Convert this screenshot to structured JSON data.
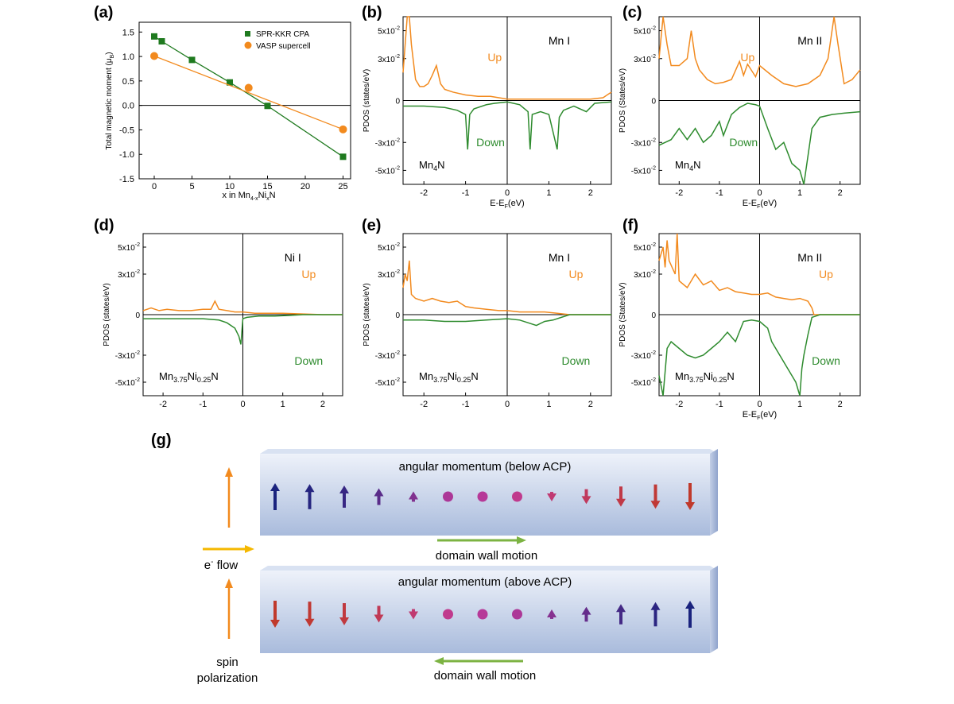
{
  "colors": {
    "orange": "#f28a1e",
    "green": "#2e8b2e",
    "green_marker": "#1f7a1f",
    "axis": "#000000",
    "up_arrow": "#1a237e",
    "down_arrow": "#c0392b",
    "mid_arrow": "#c03a9a",
    "slab_top": "#e9eef8",
    "slab_bottom": "#aebfdf",
    "flow": "#f5b800"
  },
  "panel_labels": [
    "(a)",
    "(b)",
    "(c)",
    "(d)",
    "(e)",
    "(f)",
    "(g)"
  ],
  "chart_data": [
    {
      "id": "a",
      "type": "line",
      "title": "",
      "xlabel": "x in Mn",
      "xlabel_sub1": "4-x",
      "xlabel_mid": "Ni",
      "xlabel_sub2": "x",
      "xlabel_end": "N",
      "ylabel": "Total magnetic moment (μ",
      "ylabel_sub": "B",
      "ylabel_end": ")",
      "xlim": [
        -2,
        26
      ],
      "ylim": [
        -1.5,
        1.7
      ],
      "xticks": [
        0,
        5,
        10,
        15,
        20,
        25
      ],
      "yticks": [
        -1.5,
        -1.0,
        -0.5,
        0.0,
        0.5,
        1.0,
        1.5
      ],
      "ytick_labels": [
        "-1.5",
        "-1.0",
        "-0.5",
        "0.0",
        "0.5",
        "1.0",
        "1.5"
      ],
      "series": [
        {
          "name": "SPR-KKR CPA",
          "marker": "square",
          "points": [
            [
              0,
              1.41
            ],
            [
              1,
              1.31
            ],
            [
              5,
              0.93
            ],
            [
              10,
              0.47
            ],
            [
              15,
              -0.01
            ],
            [
              25,
              -1.05
            ]
          ]
        },
        {
          "name": "VASP supercell",
          "marker": "circle",
          "points": [
            [
              0,
              1.01
            ],
            [
              12.5,
              0.36
            ],
            [
              25,
              -0.49
            ]
          ]
        }
      ]
    },
    {
      "id": "b",
      "type": "line",
      "xlabel": "E-E",
      "xlabel_sub": "F",
      "xlabel_end": "(eV)",
      "ylabel": "PDOS (states/eV)",
      "xlim": [
        -2.5,
        2.5
      ],
      "ylim": [
        -0.06,
        0.06
      ],
      "xticks": [
        -2,
        -1,
        0,
        1,
        2
      ],
      "ytick_values": [
        0.05,
        0.03,
        0,
        -0.03,
        -0.05
      ],
      "ytick_labels": [
        {
          "m": "5x10",
          "e": "-2"
        },
        {
          "m": "3x10",
          "e": "-2"
        },
        {
          "m": "0",
          "e": ""
        },
        {
          "m": "-3x10",
          "e": "-2"
        },
        {
          "m": "-5x10",
          "e": "-2"
        }
      ],
      "site": "Mn I",
      "up": "Up",
      "down": "Down",
      "compound": {
        "a": "Mn",
        "b": "4",
        "c": "N",
        "d": "",
        "e": ""
      },
      "series": [
        {
          "name": "Up",
          "x": [
            -2.5,
            -2.4,
            -2.35,
            -2.3,
            -2.2,
            -2.1,
            -2.0,
            -1.9,
            -1.8,
            -1.7,
            -1.6,
            -1.5,
            -1.3,
            -1.0,
            -0.7,
            -0.4,
            -0.2,
            0.0,
            0.5,
            1.0,
            1.5,
            2.0,
            2.3,
            2.5
          ],
          "y": [
            0.02,
            0.07,
            0.07,
            0.04,
            0.015,
            0.01,
            0.01,
            0.012,
            0.018,
            0.025,
            0.012,
            0.008,
            0.006,
            0.004,
            0.003,
            0.003,
            0.002,
            0.001,
            0.001,
            0.001,
            0.001,
            0.001,
            0.002,
            0.006
          ]
        },
        {
          "name": "Down",
          "x": [
            -2.5,
            -2.0,
            -1.5,
            -1.2,
            -1.0,
            -0.95,
            -0.9,
            -0.8,
            -0.5,
            -0.3,
            0.0,
            0.3,
            0.5,
            0.55,
            0.6,
            0.8,
            1.0,
            1.2,
            1.25,
            1.35,
            1.6,
            1.9,
            2.1,
            2.5
          ],
          "y": [
            -0.004,
            -0.004,
            -0.005,
            -0.007,
            -0.01,
            -0.035,
            -0.01,
            -0.006,
            -0.003,
            -0.002,
            -0.001,
            -0.003,
            -0.008,
            -0.035,
            -0.01,
            -0.008,
            -0.01,
            -0.035,
            -0.012,
            -0.007,
            -0.004,
            -0.008,
            -0.002,
            -0.001
          ]
        }
      ]
    },
    {
      "id": "c",
      "type": "line",
      "xlabel": "E-E",
      "xlabel_sub": "F",
      "xlabel_end": "(eV)",
      "ylabel": "PDOS (States/eV)",
      "xlim": [
        -2.5,
        2.5
      ],
      "ylim": [
        -0.06,
        0.06
      ],
      "xticks": [
        -2,
        -1,
        0,
        1,
        2
      ],
      "ytick_values": [
        0.05,
        0.03,
        0,
        -0.03,
        -0.05
      ],
      "ytick_labels": [
        {
          "m": "5x10",
          "e": "-2"
        },
        {
          "m": "3x10",
          "e": "-2"
        },
        {
          "m": "0",
          "e": ""
        },
        {
          "m": "-3x10",
          "e": "-2"
        },
        {
          "m": "-5x10",
          "e": "-2"
        }
      ],
      "site": "Mn II",
      "up": "Up",
      "down": "Down",
      "compound": {
        "a": "Mn",
        "b": "4",
        "c": "N",
        "d": "",
        "e": ""
      },
      "series": [
        {
          "name": "Up",
          "x": [
            -2.5,
            -2.4,
            -2.3,
            -2.2,
            -2.0,
            -1.8,
            -1.7,
            -1.6,
            -1.5,
            -1.3,
            -1.1,
            -0.9,
            -0.7,
            -0.5,
            -0.4,
            -0.3,
            -0.1,
            0.0,
            0.3,
            0.6,
            0.9,
            1.2,
            1.5,
            1.7,
            1.85,
            1.95,
            2.1,
            2.3,
            2.5
          ],
          "y": [
            0.03,
            0.07,
            0.04,
            0.025,
            0.025,
            0.03,
            0.05,
            0.03,
            0.022,
            0.015,
            0.012,
            0.013,
            0.015,
            0.028,
            0.018,
            0.026,
            0.017,
            0.025,
            0.018,
            0.012,
            0.01,
            0.012,
            0.018,
            0.03,
            0.07,
            0.04,
            0.012,
            0.015,
            0.022
          ]
        },
        {
          "name": "Down",
          "x": [
            -2.5,
            -2.2,
            -2.0,
            -1.8,
            -1.6,
            -1.4,
            -1.2,
            -1.0,
            -0.9,
            -0.7,
            -0.5,
            -0.3,
            -0.1,
            0.0,
            0.2,
            0.4,
            0.6,
            0.8,
            1.0,
            1.1,
            1.2,
            1.3,
            1.5,
            1.8,
            2.1,
            2.5
          ],
          "y": [
            -0.032,
            -0.028,
            -0.02,
            -0.028,
            -0.02,
            -0.03,
            -0.025,
            -0.015,
            -0.025,
            -0.01,
            -0.005,
            -0.002,
            -0.003,
            -0.004,
            -0.02,
            -0.035,
            -0.03,
            -0.045,
            -0.05,
            -0.07,
            -0.04,
            -0.02,
            -0.012,
            -0.01,
            -0.009,
            -0.008
          ]
        }
      ]
    },
    {
      "id": "d",
      "type": "line",
      "xlabel": "",
      "xlabel_sub": "",
      "xlabel_end": "",
      "ylabel": "PDOS (states/eV)",
      "xlim": [
        -2.5,
        2.5
      ],
      "ylim": [
        -0.06,
        0.06
      ],
      "xticks": [
        -2,
        -1,
        0,
        1,
        2
      ],
      "ytick_values": [
        0.05,
        0.03,
        0,
        -0.03,
        -0.05
      ],
      "ytick_labels": [
        {
          "m": "5x10",
          "e": "-2"
        },
        {
          "m": "3x10",
          "e": "-2"
        },
        {
          "m": "0",
          "e": ""
        },
        {
          "m": "-3x10",
          "e": "-2"
        },
        {
          "m": "-5x10",
          "e": "-2"
        }
      ],
      "site": "Ni I",
      "up": "Up",
      "down": "Down",
      "compound": {
        "a": "Mn",
        "b": "3.75",
        "c": "Ni",
        "d": "0.25",
        "e": "N"
      },
      "series": [
        {
          "name": "Up",
          "x": [
            -2.5,
            -2.3,
            -2.1,
            -1.9,
            -1.6,
            -1.3,
            -1.0,
            -0.8,
            -0.7,
            -0.6,
            -0.4,
            -0.2,
            0.0,
            0.3,
            0.6,
            1.0,
            1.5,
            2.0,
            2.5
          ],
          "y": [
            0.003,
            0.005,
            0.003,
            0.004,
            0.003,
            0.003,
            0.004,
            0.004,
            0.01,
            0.004,
            0.003,
            0.002,
            0.002,
            0.001,
            0.001,
            0.001,
            0.0005,
            0.0,
            0.0
          ]
        },
        {
          "name": "Down",
          "x": [
            -2.5,
            -2.0,
            -1.5,
            -1.0,
            -0.6,
            -0.4,
            -0.2,
            -0.1,
            -0.05,
            0.0,
            0.1,
            0.4,
            0.8,
            1.2,
            1.5,
            2.0,
            2.5
          ],
          "y": [
            -0.003,
            -0.003,
            -0.003,
            -0.003,
            -0.004,
            -0.006,
            -0.01,
            -0.016,
            -0.022,
            -0.003,
            -0.002,
            -0.001,
            -0.001,
            -0.0005,
            0.0,
            0.0,
            0.0
          ]
        }
      ]
    },
    {
      "id": "e",
      "type": "line",
      "xlabel": "",
      "xlabel_sub": "",
      "xlabel_end": "",
      "ylabel": "PDOS (states/eV)",
      "xlim": [
        -2.5,
        2.5
      ],
      "ylim": [
        -0.06,
        0.06
      ],
      "xticks": [
        -2,
        -1,
        0,
        1,
        2
      ],
      "ytick_values": [
        0.05,
        0.03,
        0,
        -0.03,
        -0.05
      ],
      "ytick_labels": [
        {
          "m": "5x10",
          "e": "-2"
        },
        {
          "m": "3x10",
          "e": "-2"
        },
        {
          "m": "0",
          "e": ""
        },
        {
          "m": "-3x10",
          "e": "-2"
        },
        {
          "m": "-5x10",
          "e": "-2"
        }
      ],
      "site": "Mn I",
      "up": "Up",
      "down": "Down",
      "compound": {
        "a": "Mn",
        "b": "3.75",
        "c": "Ni",
        "d": "0.25",
        "e": "N"
      },
      "series": [
        {
          "name": "Up",
          "x": [
            -2.5,
            -2.45,
            -2.4,
            -2.35,
            -2.3,
            -2.2,
            -2.0,
            -1.8,
            -1.6,
            -1.4,
            -1.2,
            -1.0,
            -0.8,
            -0.5,
            -0.2,
            0.0,
            0.3,
            0.6,
            0.9,
            1.2,
            1.35,
            1.5,
            2.0,
            2.5
          ],
          "y": [
            0.02,
            0.03,
            0.025,
            0.04,
            0.015,
            0.012,
            0.01,
            0.012,
            0.01,
            0.009,
            0.01,
            0.006,
            0.005,
            0.004,
            0.003,
            0.003,
            0.002,
            0.002,
            0.002,
            0.001,
            0.0005,
            0.0,
            0.0,
            0.0
          ]
        },
        {
          "name": "Down",
          "x": [
            -2.5,
            -2.0,
            -1.5,
            -1.0,
            -0.5,
            0.0,
            0.3,
            0.5,
            0.7,
            0.9,
            1.1,
            1.3,
            1.5,
            2.0,
            2.5
          ],
          "y": [
            -0.004,
            -0.004,
            -0.005,
            -0.005,
            -0.004,
            -0.003,
            -0.004,
            -0.006,
            -0.008,
            -0.005,
            -0.004,
            -0.002,
            0.0,
            0.0,
            0.0
          ]
        }
      ]
    },
    {
      "id": "f",
      "type": "line",
      "xlabel": "E-E",
      "xlabel_sub": "F",
      "xlabel_end": "(eV)",
      "ylabel": "PDOS (States/eV)",
      "xlim": [
        -2.5,
        2.5
      ],
      "ylim": [
        -0.06,
        0.06
      ],
      "xticks": [
        -2,
        -1,
        0,
        1,
        2
      ],
      "ytick_values": [
        0.05,
        0.03,
        0,
        -0.03,
        -0.05
      ],
      "ytick_labels": [
        {
          "m": "5x10",
          "e": "-2"
        },
        {
          "m": "3x10",
          "e": "-2"
        },
        {
          "m": "0",
          "e": ""
        },
        {
          "m": "-3x10",
          "e": "-2"
        },
        {
          "m": "-5x10",
          "e": "-2"
        }
      ],
      "site": "Mn II",
      "up": "Up",
      "down": "Down",
      "compound": {
        "a": "Mn",
        "b": "3.75",
        "c": "Ni",
        "d": "0.25",
        "e": "N"
      },
      "series": [
        {
          "name": "Up",
          "x": [
            -2.5,
            -2.4,
            -2.35,
            -2.3,
            -2.25,
            -2.1,
            -2.05,
            -2.0,
            -1.8,
            -1.6,
            -1.4,
            -1.2,
            -1.0,
            -0.8,
            -0.6,
            -0.4,
            -0.2,
            0.0,
            0.2,
            0.4,
            0.6,
            0.8,
            1.0,
            1.2,
            1.3,
            1.35,
            1.5,
            2.0,
            2.5
          ],
          "y": [
            0.04,
            0.05,
            0.035,
            0.055,
            0.04,
            0.03,
            0.07,
            0.025,
            0.02,
            0.03,
            0.022,
            0.025,
            0.018,
            0.02,
            0.017,
            0.016,
            0.015,
            0.015,
            0.016,
            0.013,
            0.012,
            0.011,
            0.012,
            0.01,
            0.005,
            0.0,
            0.0,
            0.0,
            0.0
          ]
        },
        {
          "name": "Down",
          "x": [
            -2.5,
            -2.4,
            -2.3,
            -2.2,
            -2.0,
            -1.8,
            -1.6,
            -1.4,
            -1.2,
            -1.0,
            -0.8,
            -0.6,
            -0.4,
            -0.2,
            0.0,
            0.2,
            0.3,
            0.5,
            0.7,
            0.9,
            1.0,
            1.05,
            1.1,
            1.2,
            1.3,
            1.5,
            2.0,
            2.5
          ],
          "y": [
            -0.045,
            -0.06,
            -0.025,
            -0.02,
            -0.025,
            -0.03,
            -0.032,
            -0.03,
            -0.025,
            -0.02,
            -0.013,
            -0.02,
            -0.005,
            -0.004,
            -0.005,
            -0.01,
            -0.02,
            -0.03,
            -0.04,
            -0.05,
            -0.07,
            -0.04,
            -0.03,
            -0.015,
            -0.002,
            0.0,
            0.0,
            0.0
          ]
        }
      ]
    }
  ],
  "schematic": {
    "top_title": "angular momentum (below ACP)",
    "bottom_title": "angular momentum (above ACP)",
    "dw_motion": "domain wall motion",
    "flow_e": "e",
    "flow_sup": "-",
    "flow_rest": " flow",
    "spin_line1": "spin",
    "spin_line2": "polarization",
    "top_arrow_lengths": [
      1,
      0.93,
      0.82,
      0.62,
      0.38,
      0.12,
      0.06,
      -0.12,
      -0.35,
      -0.55,
      -0.75,
      -0.9,
      -1
    ],
    "bottom_arrow_lengths": [
      -1,
      -0.93,
      -0.82,
      -0.62,
      -0.38,
      -0.12,
      0.06,
      0.12,
      0.35,
      0.55,
      0.75,
      0.9,
      1
    ]
  }
}
